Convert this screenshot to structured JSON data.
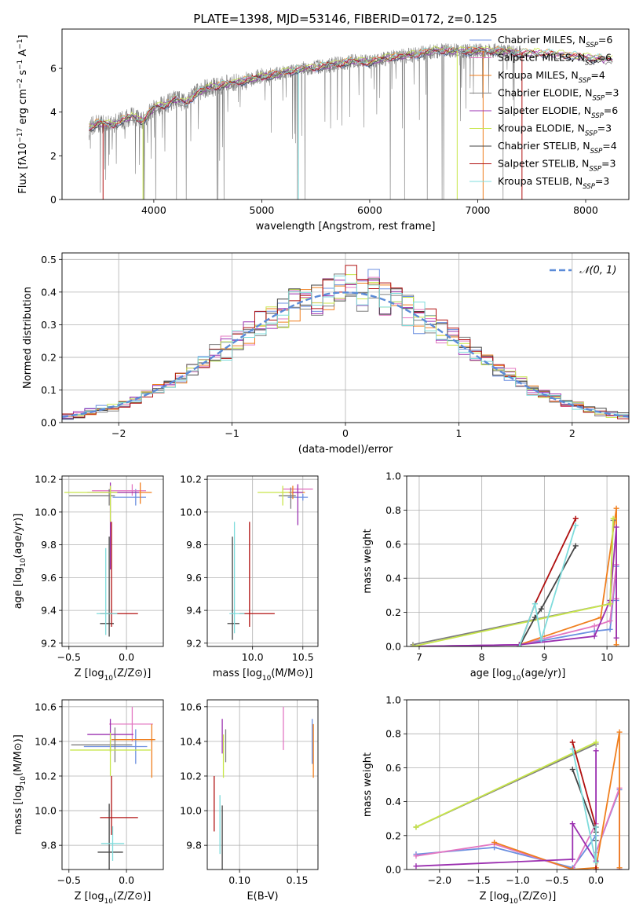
{
  "figure_title": "PLATE=1398, MJD=53146, FIBERID=0172, z=0.125",
  "colors": {
    "Chabrier MILES": "#6b8fe0",
    "Salpeter MILES": "#e377c2",
    "Kroupa MILES": "#f07f1e",
    "Chabrier ELODIE": "#7f7f7f",
    "Salpeter ELODIE": "#9b30b0",
    "Kroupa ELODIE": "#c8e64a",
    "Chabrier STELIB": "#444444",
    "Salpeter STELIB": "#b01010",
    "Kroupa STELIB": "#7fdcdc",
    "data": "#808080",
    "gaussian": "#5b8bd8"
  },
  "chart_data": [
    {
      "id": "spectrum",
      "type": "line",
      "title": "PLATE=1398, MJD=53146, FIBERID=0172, z=0.125",
      "xlabel": "wavelength [Angstrom, rest frame]",
      "ylabel": "Flux [fλ10⁻¹⁷ erg cm⁻² s⁻¹ A⁻¹]",
      "xlim": [
        3150,
        8400
      ],
      "ylim": [
        0,
        7.8
      ],
      "xticks": [
        4000,
        5000,
        6000,
        7000,
        8000
      ],
      "yticks": [
        0,
        2,
        4,
        6
      ],
      "grid": false,
      "legend_position": "right",
      "legend": [
        {
          "label": "Chabrier MILES, N",
          "sub": "SSP",
          "tail": "=6"
        },
        {
          "label": "Salpeter MILES, N",
          "sub": "SSP",
          "tail": "=6"
        },
        {
          "label": "Kroupa MILES, N",
          "sub": "SSP",
          "tail": "=4"
        },
        {
          "label": "Chabrier ELODIE, N",
          "sub": "SSP",
          "tail": "=3"
        },
        {
          "label": "Salpeter ELODIE, N",
          "sub": "SSP",
          "tail": "=6"
        },
        {
          "label": "Kroupa ELODIE, N",
          "sub": "SSP",
          "tail": "=3"
        },
        {
          "label": "Chabrier STELIB, N",
          "sub": "SSP",
          "tail": "=4"
        },
        {
          "label": "Salpeter STELIB, N",
          "sub": "SSP",
          "tail": "=3"
        },
        {
          "label": "Kroupa STELIB, N",
          "sub": "SSP",
          "tail": "=3"
        }
      ],
      "continuum": {
        "x": [
          3400,
          3500,
          3600,
          3700,
          3800,
          3900,
          4000,
          4100,
          4200,
          4300,
          4400,
          4500,
          4600,
          4700,
          4800,
          4900,
          5000,
          5200,
          5400,
          5600,
          5800,
          6000,
          6200,
          6400,
          6600,
          6800,
          7000,
          7200,
          7400,
          7600,
          7800,
          8000,
          8200
        ],
        "y": [
          3.3,
          3.5,
          3.4,
          3.6,
          3.8,
          3.6,
          4.2,
          4.3,
          4.6,
          4.4,
          4.9,
          5.1,
          5.2,
          5.3,
          5.4,
          5.5,
          5.6,
          5.8,
          6.0,
          6.1,
          6.3,
          6.3,
          6.5,
          6.6,
          6.8,
          6.8,
          6.8,
          6.8,
          6.7,
          6.7,
          6.6,
          6.5,
          6.4
        ]
      },
      "data_range": [
        3400,
        7400
      ],
      "model_range": [
        3400,
        8250
      ]
    },
    {
      "id": "residuals",
      "type": "line",
      "xlabel": "(data-model)/error",
      "ylabel": "Normed distribution",
      "xlim": [
        -2.5,
        2.5
      ],
      "ylim": [
        0,
        0.52
      ],
      "xticks": [
        -2,
        -1,
        0,
        1,
        2
      ],
      "yticks": [
        0.0,
        0.1,
        0.2,
        0.3,
        0.4,
        0.5
      ],
      "grid": true,
      "legend_position": "top-right",
      "legend_label": "𝒩(0, 1)",
      "bin_width": 0.1,
      "gaussian_sigma": 1
    },
    {
      "id": "age-Z",
      "type": "scatter",
      "xlabel": "Z [log₁₀(Z/Z⊙)]",
      "ylabel": "age  [log₁₀(age/yr)]",
      "xlim": [
        -0.56,
        0.32
      ],
      "ylim": [
        9.18,
        10.22
      ],
      "xticks": [
        -0.5,
        0.0
      ],
      "yticks": [
        9.2,
        9.4,
        9.6,
        9.8,
        10.0,
        10.2
      ],
      "grid": true,
      "points": [
        {
          "model": "Chabrier MILES",
          "x": 0.08,
          "xerr": [
            0.2,
            0.09
          ],
          "y": 10.09,
          "yerr": [
            0.05,
            0.05
          ]
        },
        {
          "model": "Salpeter MILES",
          "x": 0.05,
          "xerr": [
            0.35,
            0.12
          ],
          "y": 10.13,
          "yerr": [
            0.03,
            0.04
          ]
        },
        {
          "model": "Kroupa MILES",
          "x": 0.12,
          "xerr": [
            0.35,
            0.1
          ],
          "y": 10.12,
          "yerr": [
            0.07,
            0.06
          ]
        },
        {
          "model": "Chabrier ELODIE",
          "x": -0.15,
          "xerr": [
            0.35,
            0.05
          ],
          "y": 10.1,
          "yerr": [
            0.06,
            0.04
          ]
        },
        {
          "model": "Salpeter ELODIE",
          "x": -0.14,
          "xerr": [
            0.2,
            0.25
          ],
          "y": 10.12,
          "yerr": [
            0.47,
            0.06
          ]
        },
        {
          "model": "Kroupa ELODIE",
          "x": -0.14,
          "xerr": [
            0.4,
            0.06
          ],
          "y": 10.12,
          "yerr": [
            0.18,
            0.04
          ]
        },
        {
          "model": "Chabrier STELIB",
          "x": -0.15,
          "xerr": [
            0.08,
            0.04
          ],
          "y": 9.32,
          "yerr": [
            0.08,
            0.53
          ]
        },
        {
          "model": "Salpeter STELIB",
          "x": -0.13,
          "xerr": [
            0.1,
            0.23
          ],
          "y": 9.38,
          "yerr": [
            0.08,
            0.56
          ]
        },
        {
          "model": "Kroupa STELIB",
          "x": -0.18,
          "xerr": [
            0.08,
            0.1
          ],
          "y": 9.38,
          "yerr": [
            0.13,
            0.4
          ]
        }
      ]
    },
    {
      "id": "age-mass",
      "type": "scatter",
      "xlabel": "mass [log₁₀(M/M⊙)]",
      "ylabel": "",
      "xlim": [
        9.55,
        10.65
      ],
      "ylim": [
        9.18,
        10.22
      ],
      "xticks": [
        10.0,
        10.5
      ],
      "yticks": [
        9.2,
        9.4,
        9.6,
        9.8,
        10.0,
        10.2
      ],
      "grid": true,
      "points": [
        {
          "model": "Chabrier MILES",
          "x": 10.5,
          "xerr": [
            0.15,
            0.05
          ],
          "y": 10.09,
          "yerr": [
            0.02,
            0.02
          ]
        },
        {
          "model": "Salpeter MILES",
          "x": 10.45,
          "xerr": [
            0.15,
            0.15
          ],
          "y": 10.14,
          "yerr": [
            0.02,
            0.02
          ]
        },
        {
          "model": "Kroupa MILES",
          "x": 10.4,
          "xerr": [
            0.12,
            0.12
          ],
          "y": 10.12,
          "yerr": [
            0.04,
            0.04
          ]
        },
        {
          "model": "Chabrier ELODIE",
          "x": 10.38,
          "xerr": [
            0.12,
            0.05
          ],
          "y": 10.1,
          "yerr": [
            0.08,
            0.05
          ]
        },
        {
          "model": "Salpeter ELODIE",
          "x": 10.45,
          "xerr": [
            0.05,
            0.05
          ],
          "y": 10.12,
          "yerr": [
            0.2,
            0.05
          ]
        },
        {
          "model": "Kroupa ELODIE",
          "x": 10.3,
          "xerr": [
            0.25,
            0.06
          ],
          "y": 10.12,
          "yerr": [
            0.08,
            0.04
          ]
        },
        {
          "model": "Chabrier STELIB",
          "x": 9.8,
          "xerr": [
            0.05,
            0.07
          ],
          "y": 9.32,
          "yerr": [
            0.1,
            0.53
          ]
        },
        {
          "model": "Salpeter STELIB",
          "x": 9.97,
          "xerr": [
            0.1,
            0.25
          ],
          "y": 9.38,
          "yerr": [
            0.08,
            0.56
          ]
        },
        {
          "model": "Kroupa STELIB",
          "x": 9.82,
          "xerr": [
            0.05,
            0.1
          ],
          "y": 9.38,
          "yerr": [
            0.12,
            0.56
          ]
        }
      ]
    },
    {
      "id": "weight-age",
      "type": "line",
      "xlabel": "age  [log₁₀(age/yr)]",
      "ylabel": "mass weight",
      "xlim": [
        6.8,
        10.35
      ],
      "ylim": [
        0,
        1.0
      ],
      "xticks": [
        7,
        8,
        9,
        10
      ],
      "yticks": [
        0.0,
        0.2,
        0.4,
        0.6,
        0.8,
        1.0
      ],
      "grid": true,
      "series": [
        {
          "model": "Chabrier MILES",
          "x": [
            6.9,
            8.6,
            9.8,
            10.05,
            10.15,
            10.15
          ],
          "y": [
            0.0,
            0.01,
            0.09,
            0.1,
            0.47,
            0.27
          ]
        },
        {
          "model": "Salpeter MILES",
          "x": [
            6.9,
            8.6,
            9.8,
            10.05,
            10.15,
            10.15
          ],
          "y": [
            0.0,
            0.01,
            0.12,
            0.15,
            0.48,
            0.28
          ]
        },
        {
          "model": "Kroupa MILES",
          "x": [
            8.6,
            9.9,
            10.15,
            10.15
          ],
          "y": [
            0.01,
            0.17,
            0.81,
            0.01
          ]
        },
        {
          "model": "Chabrier ELODIE",
          "x": [
            6.9,
            10.05,
            10.1
          ],
          "y": [
            0.01,
            0.25,
            0.74
          ]
        },
        {
          "model": "Salpeter ELODIE",
          "x": [
            6.9,
            8.6,
            9.8,
            10.05,
            10.15,
            10.15
          ],
          "y": [
            0.0,
            0.01,
            0.06,
            0.27,
            0.7,
            0.05
          ]
        },
        {
          "model": "Kroupa ELODIE",
          "x": [
            6.9,
            10.05,
            10.1
          ],
          "y": [
            0.0,
            0.25,
            0.75
          ]
        },
        {
          "model": "Chabrier STELIB",
          "x": [
            8.6,
            8.85,
            8.95,
            9.5
          ],
          "y": [
            0.0,
            0.17,
            0.22,
            0.59
          ]
        },
        {
          "model": "Salpeter STELIB",
          "x": [
            8.6,
            8.85,
            9.5
          ],
          "y": [
            0.0,
            0.25,
            0.75
          ]
        },
        {
          "model": "Kroupa STELIB",
          "x": [
            8.6,
            8.85,
            8.95,
            9.5
          ],
          "y": [
            0.0,
            0.25,
            0.04,
            0.71
          ]
        }
      ]
    },
    {
      "id": "mass-Z",
      "type": "scatter",
      "xlabel": "Z [log₁₀(Z/Z⊙)]",
      "ylabel": "mass [log₁₀(M/M⊙)]",
      "xlim": [
        -0.56,
        0.32
      ],
      "ylim": [
        9.66,
        10.64
      ],
      "xticks": [
        -0.5,
        0.0
      ],
      "yticks": [
        9.8,
        10.0,
        10.2,
        10.4,
        10.6
      ],
      "grid": true,
      "points": [
        {
          "model": "Chabrier MILES",
          "x": 0.08,
          "xerr": [
            0.45,
            0.1
          ],
          "y": 10.37,
          "yerr": [
            0.1,
            0.1
          ]
        },
        {
          "model": "Salpeter MILES",
          "x": 0.05,
          "xerr": [
            0.2,
            0.18
          ],
          "y": 10.5,
          "yerr": [
            0.1,
            0.1
          ]
        },
        {
          "model": "Kroupa MILES",
          "x": 0.22,
          "xerr": [
            0.35,
            0.03
          ],
          "y": 10.41,
          "yerr": [
            0.22,
            0.09
          ]
        },
        {
          "model": "Chabrier ELODIE",
          "x": -0.1,
          "xerr": [
            0.38,
            0.15
          ],
          "y": 10.38,
          "yerr": [
            0.1,
            0.1
          ]
        },
        {
          "model": "Salpeter ELODIE",
          "x": -0.14,
          "xerr": [
            0.2,
            0.2
          ],
          "y": 10.44,
          "yerr": [
            0.1,
            0.09
          ]
        },
        {
          "model": "Kroupa ELODIE",
          "x": -0.14,
          "xerr": [
            0.35,
            0.35
          ],
          "y": 10.35,
          "yerr": [
            0.15,
            0.1
          ]
        },
        {
          "model": "Chabrier STELIB",
          "x": -0.15,
          "xerr": [
            0.1,
            0.12
          ],
          "y": 9.76,
          "yerr": [
            0.1,
            0.28
          ]
        },
        {
          "model": "Salpeter STELIB",
          "x": -0.13,
          "xerr": [
            0.1,
            0.23
          ],
          "y": 9.96,
          "yerr": [
            0.1,
            0.24
          ]
        },
        {
          "model": "Kroupa STELIB",
          "x": -0.12,
          "xerr": [
            0.1,
            0.1
          ],
          "y": 9.81,
          "yerr": [
            0.1,
            0.1
          ]
        }
      ]
    },
    {
      "id": "mass-EBV",
      "type": "scatter",
      "xlabel": "E(B-V)",
      "ylabel": "",
      "xlim": [
        0.072,
        0.168
      ],
      "ylim": [
        9.66,
        10.64
      ],
      "xticks": [
        0.1,
        0.15
      ],
      "yticks": [
        9.8,
        10.0,
        10.2,
        10.4,
        10.6
      ],
      "grid": true,
      "points": [
        {
          "model": "Chabrier MILES",
          "x": 0.163,
          "y": 10.37,
          "yerr": [
            0.1,
            0.16
          ]
        },
        {
          "model": "Salpeter MILES",
          "x": 0.138,
          "y": 10.48,
          "yerr": [
            0.13,
            0.12
          ]
        },
        {
          "model": "Kroupa MILES",
          "x": 0.164,
          "y": 10.35,
          "yerr": [
            0.16,
            0.15
          ]
        },
        {
          "model": "Chabrier ELODIE",
          "x": 0.088,
          "y": 10.38,
          "yerr": [
            0.1,
            0.09
          ]
        },
        {
          "model": "Salpeter ELODIE",
          "x": 0.085,
          "y": 10.43,
          "yerr": [
            0.1,
            0.1
          ]
        },
        {
          "model": "Kroupa ELODIE",
          "x": 0.086,
          "y": 10.35,
          "yerr": [
            0.16,
            0.09
          ]
        },
        {
          "model": "Chabrier STELIB",
          "x": 0.085,
          "y": 9.9,
          "yerr": [
            0.25,
            0.13
          ]
        },
        {
          "model": "Salpeter STELIB",
          "x": 0.078,
          "y": 10.03,
          "yerr": [
            0.15,
            0.17
          ]
        },
        {
          "model": "Kroupa STELIB",
          "x": 0.083,
          "y": 9.92,
          "yerr": [
            0.17,
            0.17
          ]
        }
      ]
    },
    {
      "id": "weight-Z",
      "type": "line",
      "xlabel": "Z [log₁₀(Z/Z⊙)]",
      "ylabel": "mass weight",
      "xlim": [
        -2.42,
        0.42
      ],
      "ylim": [
        0,
        1.0
      ],
      "xticks": [
        -2.0,
        -1.5,
        -1.0,
        -0.5,
        0.0
      ],
      "yticks": [
        0.0,
        0.2,
        0.4,
        0.6,
        0.8,
        1.0
      ],
      "grid": true,
      "series": [
        {
          "model": "Chabrier MILES",
          "x": [
            -2.3,
            -1.3,
            -0.3,
            0.0,
            0.0,
            0.3,
            0.3
          ],
          "y": [
            0.09,
            0.13,
            0.01,
            0.2,
            0.1,
            0.47,
            0.0
          ]
        },
        {
          "model": "Salpeter MILES",
          "x": [
            -2.3,
            -1.3,
            -0.3,
            0.0,
            0.0,
            0.3,
            0.3
          ],
          "y": [
            0.08,
            0.15,
            0.0,
            0.27,
            0.1,
            0.48,
            0.0
          ]
        },
        {
          "model": "Kroupa MILES",
          "x": [
            -1.3,
            -0.3,
            0.0,
            0.3,
            0.3
          ],
          "y": [
            0.16,
            0.0,
            0.01,
            0.81,
            0.01
          ]
        },
        {
          "model": "Chabrier ELODIE",
          "x": [
            -2.3,
            0.0
          ],
          "y": [
            0.25,
            0.74
          ]
        },
        {
          "model": "Salpeter ELODIE",
          "x": [
            -2.3,
            -0.3,
            -0.3,
            0.0,
            0.0
          ],
          "y": [
            0.02,
            0.06,
            0.27,
            0.05,
            0.7
          ]
        },
        {
          "model": "Kroupa ELODIE",
          "x": [
            -2.3,
            0.0
          ],
          "y": [
            0.25,
            0.75
          ]
        },
        {
          "model": "Chabrier STELIB",
          "x": [
            -0.3,
            0.0,
            0.0
          ],
          "y": [
            0.59,
            0.22,
            0.17
          ]
        },
        {
          "model": "Salpeter STELIB",
          "x": [
            -0.3,
            0.0,
            0.0
          ],
          "y": [
            0.75,
            0.25,
            0.0
          ]
        },
        {
          "model": "Kroupa STELIB",
          "x": [
            -0.3,
            0.0,
            0.0
          ],
          "y": [
            0.71,
            0.04,
            0.25
          ]
        }
      ]
    }
  ]
}
